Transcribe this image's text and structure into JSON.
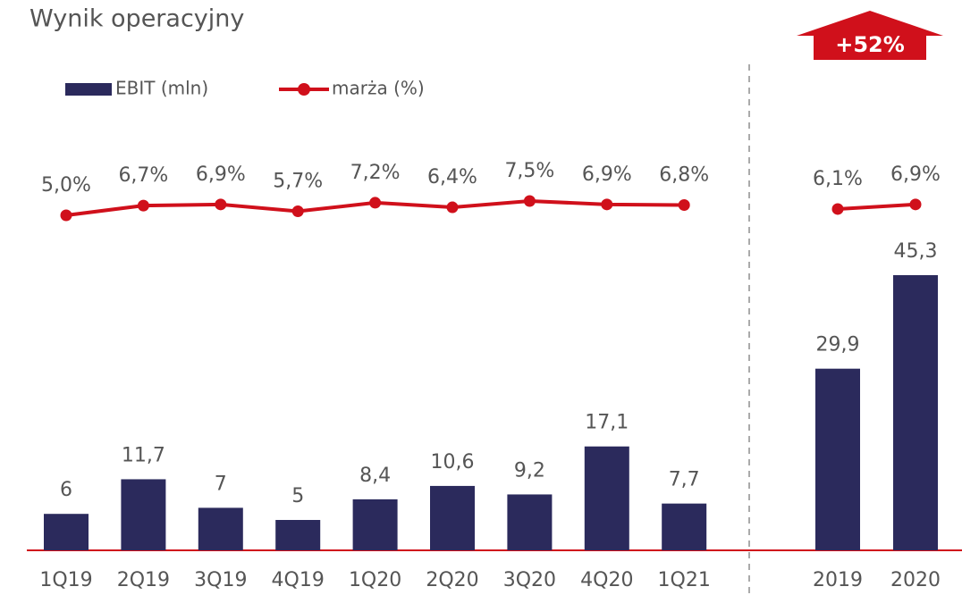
{
  "chart_data": [
    {
      "type": "bar_line",
      "title": "Wynik operacyjny",
      "categories": [
        "1Q19",
        "2Q19",
        "3Q19",
        "4Q19",
        "1Q20",
        "2Q20",
        "3Q20",
        "4Q20",
        "1Q21"
      ],
      "series": [
        {
          "name": "EBIT (mln)",
          "type": "bar",
          "color": "#2b2a5c",
          "values": [
            6,
            11.7,
            7,
            5,
            8.4,
            10.6,
            9.2,
            17.1,
            7.7
          ],
          "value_labels": [
            "6",
            "11,7",
            "7",
            "5",
            "8,4",
            "10,6",
            "9,2",
            "17,1",
            "7,7"
          ]
        },
        {
          "name": "marża (%)",
          "type": "line",
          "color": "#d0101b",
          "values": [
            5.0,
            6.7,
            6.9,
            5.7,
            7.2,
            6.4,
            7.5,
            6.9,
            6.8
          ],
          "value_labels": [
            "5,0%",
            "6,7%",
            "6,9%",
            "5,7%",
            "7,2%",
            "6,4%",
            "7,5%",
            "6,9%",
            "6,8%"
          ]
        }
      ]
    },
    {
      "type": "bar_line",
      "annotation": "+52%",
      "categories": [
        "2019",
        "2020"
      ],
      "series": [
        {
          "type": "bar",
          "color": "#2b2a5c",
          "values": [
            29.9,
            45.3
          ],
          "value_labels": [
            "29,9",
            "45,3"
          ]
        },
        {
          "type": "line",
          "color": "#d0101b",
          "values": [
            6.1,
            6.9
          ],
          "value_labels": [
            "6,1%",
            "6,9%"
          ]
        }
      ]
    }
  ]
}
